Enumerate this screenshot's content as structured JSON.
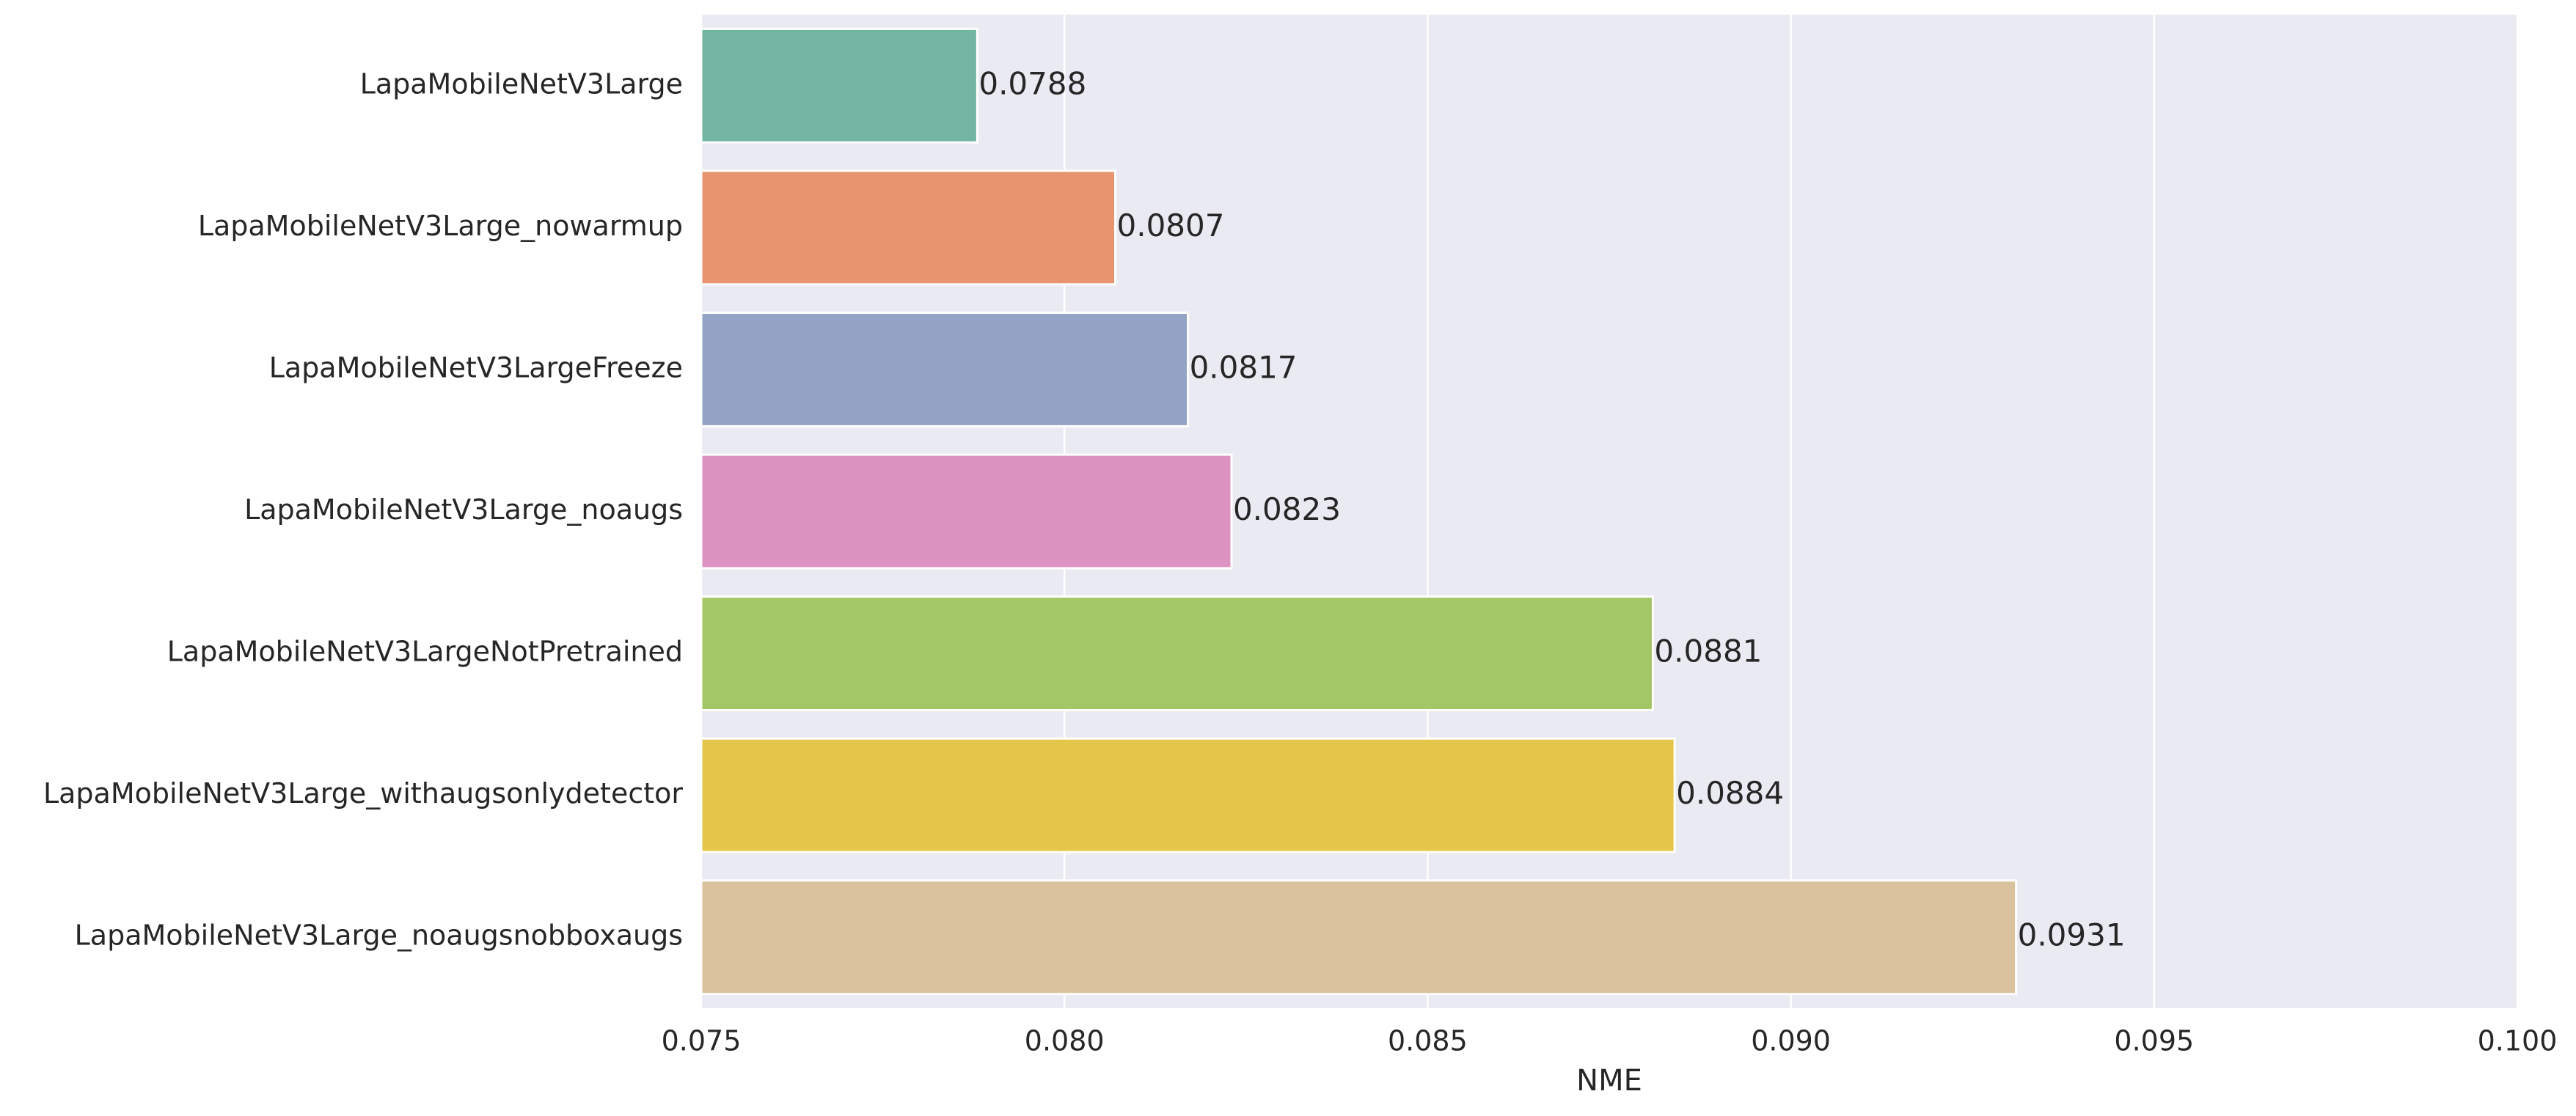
{
  "chart_data": {
    "type": "barh",
    "xlabel": "NME",
    "categories": [
      "LapaMobileNetV3Large",
      "LapaMobileNetV3Large_nowarmup",
      "LapaMobileNetV3LargeFreeze",
      "LapaMobileNetV3Large_noaugs",
      "LapaMobileNetV3LargeNotPretrained",
      "LapaMobileNetV3Large_withaugsonlydetector",
      "LapaMobileNetV3Large_noaugsnobboxaugs"
    ],
    "values": [
      0.0788,
      0.0807,
      0.0817,
      0.0823,
      0.0881,
      0.0884,
      0.0931
    ],
    "colors": [
      "#72b6a1",
      "#e8956f",
      "#93a4c5",
      "#dc93c1",
      "#a3c766",
      "#e4c64b",
      "#dac29e"
    ],
    "xlim": [
      0.075,
      0.1
    ],
    "xticks": [
      0.075,
      {
        "value": 0.08,
        "label": "0.080"
      },
      0.085,
      {
        "value": 0.09,
        "label": "0.090"
      },
      0.095,
      {
        "value": 0.1,
        "label": "0.100"
      }
    ],
    "grid": true
  }
}
